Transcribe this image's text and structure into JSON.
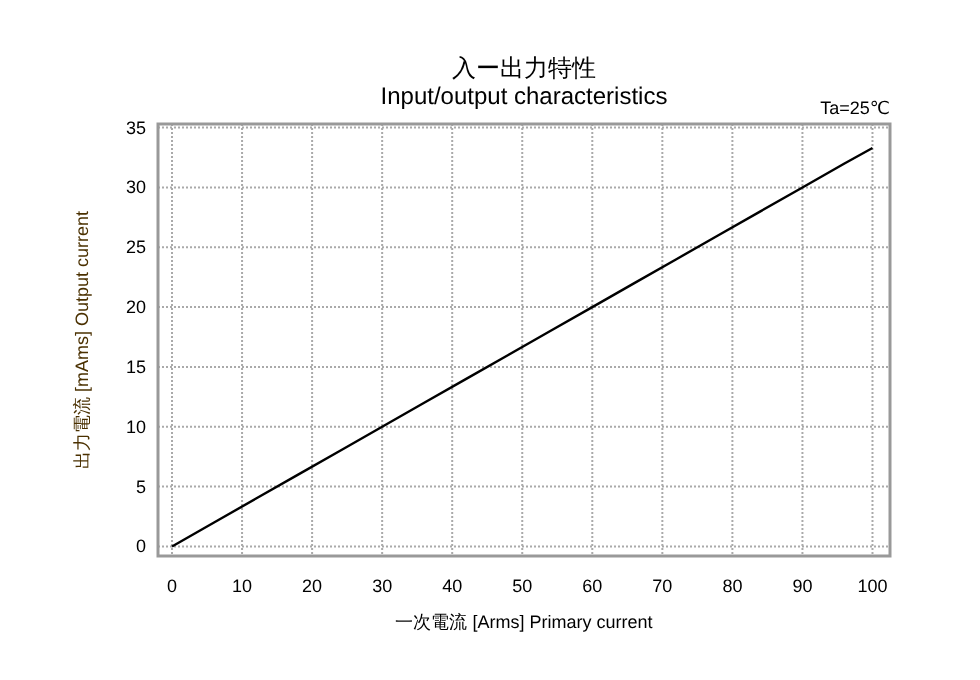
{
  "chart_data": {
    "type": "line",
    "title": "入ー出力特性",
    "subtitle": "Input/output characteristics",
    "xlabel": "一次電流 [Arms]   Primary current",
    "ylabel": "出力電流 [mAms]   Output current",
    "annotations": [
      "Ta=25℃"
    ],
    "x": [
      0,
      6,
      12,
      18,
      24,
      30,
      36,
      42,
      48,
      54,
      60,
      66,
      72,
      78,
      84,
      90,
      96,
      100
    ],
    "series": [
      {
        "color": "#000000",
        "values": [
          0,
          2,
          4,
          6,
          8,
          10,
          12,
          14,
          16,
          18,
          20,
          22,
          24,
          26,
          28,
          30,
          32,
          33.3
        ]
      }
    ],
    "xlim": [
      -2,
      102.5
    ],
    "ylim": [
      -0.8,
      35.3
    ],
    "xticks": [
      0,
      10,
      20,
      30,
      40,
      50,
      60,
      70,
      80,
      90,
      100
    ],
    "yticks": [
      0,
      5,
      10,
      15,
      20,
      25,
      30,
      35
    ],
    "grid": true,
    "marker": "none",
    "line_style": "solid"
  }
}
